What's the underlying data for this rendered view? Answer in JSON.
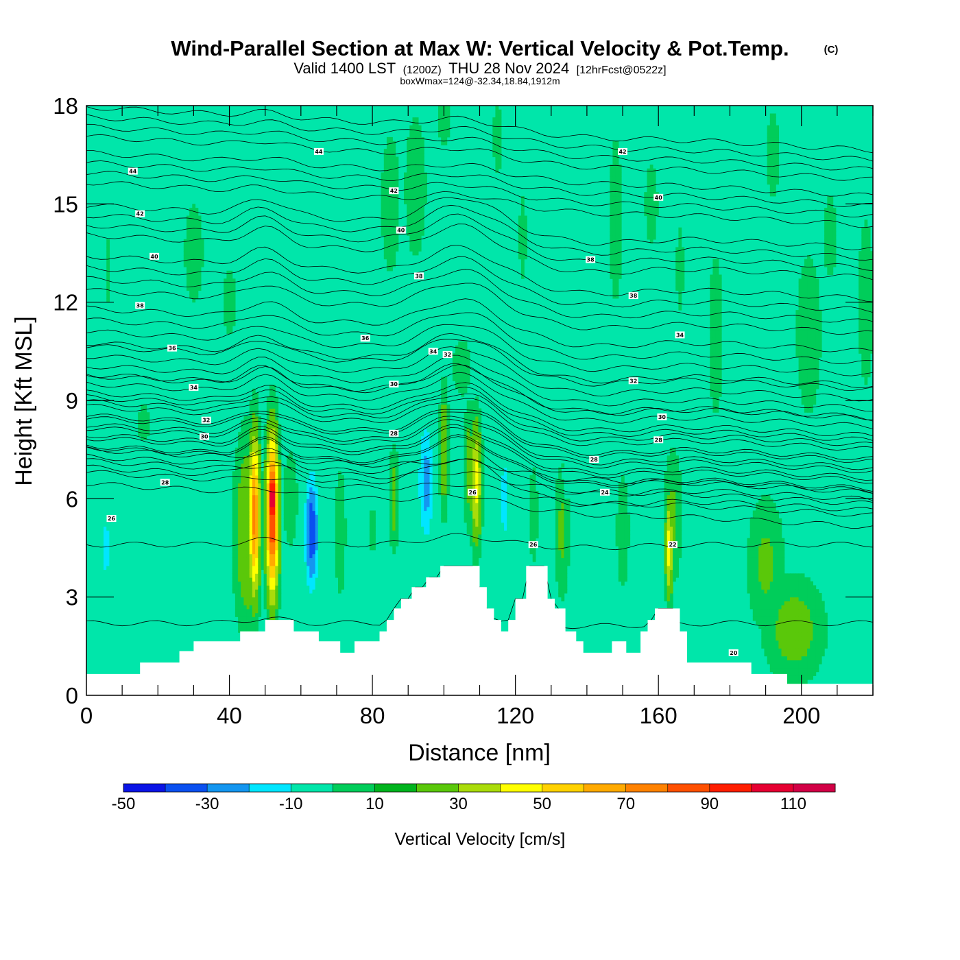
{
  "title": {
    "main": "Wind-Parallel Section at Max W: Vertical Velocity & Pot.Temp.",
    "copyright": "(C)",
    "valid_a": "Valid 1400 LST",
    "valid_b": "(1200Z)",
    "valid_c": "THU 28 Nov 2024",
    "valid_d": "[12hrFcst@0522z]",
    "box_info": "boxWmax=124@-32.34,18.84,1912m"
  },
  "chart_data": {
    "type": "heatmap",
    "xlabel": "Distance [nm]",
    "ylabel": "Height [Kft MSL]",
    "xlim": [
      0,
      220
    ],
    "ylim": [
      0,
      18
    ],
    "x_ticks": [
      "0",
      "40",
      "80",
      "120",
      "160",
      "200"
    ],
    "x_tick_values": [
      0,
      40,
      80,
      120,
      160,
      200
    ],
    "y_ticks": [
      "0",
      "3",
      "6",
      "9",
      "12",
      "15",
      "18"
    ],
    "y_tick_values": [
      0,
      3,
      6,
      9,
      12,
      15,
      18
    ],
    "colorbar": {
      "title": "Vertical Velocity [cm/s]",
      "labels": [
        "-50",
        "-30",
        "-10",
        "10",
        "30",
        "50",
        "70",
        "90",
        "110"
      ],
      "levels": [
        -60,
        -50,
        -40,
        -30,
        -20,
        -10,
        0,
        10,
        20,
        30,
        40,
        50,
        60,
        70,
        80,
        90,
        100,
        110,
        120
      ],
      "colors": [
        "#0a14e6",
        "#0a50f0",
        "#1496f0",
        "#00e6ff",
        "#00e6aa",
        "#00cd5a",
        "#00b41e",
        "#5ac80a",
        "#aadc0a",
        "#ffff00",
        "#ffd200",
        "#ffaa00",
        "#ff8200",
        "#ff5000",
        "#ff1e00",
        "#e60032",
        "#d20046"
      ]
    },
    "background_color": "#00e6aa",
    "terrain": [
      [
        0,
        0.65
      ],
      [
        15,
        0.65
      ],
      [
        15,
        1.0
      ],
      [
        26,
        1.0
      ],
      [
        26,
        1.35
      ],
      [
        30,
        1.35
      ],
      [
        30,
        1.65
      ],
      [
        43,
        1.65
      ],
      [
        43,
        1.95
      ],
      [
        50,
        1.95
      ],
      [
        50,
        2.3
      ],
      [
        58,
        2.3
      ],
      [
        58,
        1.95
      ],
      [
        65,
        1.95
      ],
      [
        65,
        1.65
      ],
      [
        71,
        1.65
      ],
      [
        71,
        1.3
      ],
      [
        75,
        1.3
      ],
      [
        75,
        1.65
      ],
      [
        82,
        1.65
      ],
      [
        82,
        1.95
      ],
      [
        84,
        1.95
      ],
      [
        84,
        2.3
      ],
      [
        86,
        2.3
      ],
      [
        86,
        2.65
      ],
      [
        88,
        2.65
      ],
      [
        88,
        2.95
      ],
      [
        91,
        2.95
      ],
      [
        91,
        3.3
      ],
      [
        95,
        3.3
      ],
      [
        95,
        3.6
      ],
      [
        99,
        3.6
      ],
      [
        99,
        3.95
      ],
      [
        110,
        3.95
      ],
      [
        110,
        3.3
      ],
      [
        112,
        3.3
      ],
      [
        112,
        2.65
      ],
      [
        114,
        2.65
      ],
      [
        114,
        2.3
      ],
      [
        116,
        2.3
      ],
      [
        116,
        1.95
      ],
      [
        118,
        1.95
      ],
      [
        118,
        2.3
      ],
      [
        120,
        2.3
      ],
      [
        120,
        2.95
      ],
      [
        123,
        2.95
      ],
      [
        123,
        3.95
      ],
      [
        129,
        3.95
      ],
      [
        129,
        2.95
      ],
      [
        131,
        2.95
      ],
      [
        131,
        2.65
      ],
      [
        134,
        2.65
      ],
      [
        134,
        1.95
      ],
      [
        137,
        1.95
      ],
      [
        137,
        1.65
      ],
      [
        139,
        1.65
      ],
      [
        139,
        1.3
      ],
      [
        147,
        1.3
      ],
      [
        147,
        1.65
      ],
      [
        151,
        1.65
      ],
      [
        151,
        1.3
      ],
      [
        155,
        1.3
      ],
      [
        155,
        1.95
      ],
      [
        157,
        1.95
      ],
      [
        157,
        2.3
      ],
      [
        159,
        2.3
      ],
      [
        159,
        2.65
      ],
      [
        166,
        2.65
      ],
      [
        166,
        1.95
      ],
      [
        168,
        1.95
      ],
      [
        168,
        1.0
      ],
      [
        186,
        1.0
      ],
      [
        186,
        0.65
      ],
      [
        196,
        0.65
      ],
      [
        196,
        0.35
      ],
      [
        220,
        0.35
      ]
    ],
    "velocity_features": [
      {
        "x": 6,
        "y": 4.3,
        "w": 0,
        "sx": 3.0,
        "sy": 1.8
      },
      {
        "x": 5.5,
        "y": 4.5,
        "w": -25,
        "sx": 1.5,
        "sy": 1.5
      },
      {
        "x": 18,
        "y": 4.0,
        "w": -15,
        "sx": 3.0,
        "sy": 2.0
      },
      {
        "x": 30,
        "y": 5.5,
        "w": -12,
        "sx": 2.5,
        "sy": 1.0
      },
      {
        "x": 30,
        "y": 13.5,
        "w": 8,
        "sx": 3.0,
        "sy": 1.8
      },
      {
        "x": 40,
        "y": 12.0,
        "w": 6,
        "sx": 3.0,
        "sy": 1.5
      },
      {
        "x": 6,
        "y": 13.0,
        "w": 5,
        "sx": 1.5,
        "sy": 2.0
      },
      {
        "x": 16,
        "y": 8.3,
        "w": 6,
        "sx": 2.5,
        "sy": 0.9
      },
      {
        "x": 45,
        "y": 5.0,
        "w": 20,
        "sx": 3.5,
        "sy": 2.8
      },
      {
        "x": 47,
        "y": 5.5,
        "w": 65,
        "sx": 1.4,
        "sy": 2.3
      },
      {
        "x": 52,
        "y": 5.5,
        "w": 85,
        "sx": 1.6,
        "sy": 2.3
      },
      {
        "x": 52,
        "y": 6.0,
        "w": 120,
        "sx": 0.8,
        "sy": 1.2
      },
      {
        "x": 57,
        "y": 6.0,
        "w": 10,
        "sx": 2.0,
        "sy": 1.5
      },
      {
        "x": 63,
        "y": 5.0,
        "w": -48,
        "sx": 2.2,
        "sy": 2.0
      },
      {
        "x": 65,
        "y": 5.5,
        "w": -20,
        "sx": 4.0,
        "sy": 2.5
      },
      {
        "x": 71,
        "y": 5.0,
        "w": 10,
        "sx": 1.5,
        "sy": 2.0
      },
      {
        "x": 76,
        "y": 6.0,
        "w": -15,
        "sx": 1.2,
        "sy": 1.5
      },
      {
        "x": 80,
        "y": 5.0,
        "w": 5,
        "sx": 1.5,
        "sy": 1.5
      },
      {
        "x": 86,
        "y": 6.0,
        "w": 15,
        "sx": 1.2,
        "sy": 1.5
      },
      {
        "x": 90,
        "y": 5.5,
        "w": -15,
        "sx": 2.0,
        "sy": 1.5
      },
      {
        "x": 95,
        "y": 6.5,
        "w": -35,
        "sx": 2.5,
        "sy": 2.2
      },
      {
        "x": 100,
        "y": 7.5,
        "w": 20,
        "sx": 1.2,
        "sy": 1.8
      },
      {
        "x": 104,
        "y": 6.5,
        "w": -12,
        "sx": 1.5,
        "sy": 2.0
      },
      {
        "x": 107,
        "y": 7.0,
        "w": 15,
        "sx": 1.5,
        "sy": 1.8
      },
      {
        "x": 109,
        "y": 6.5,
        "w": 35,
        "sx": 1.4,
        "sy": 1.8
      },
      {
        "x": 113,
        "y": 6.0,
        "w": -10,
        "sx": 2.0,
        "sy": 1.8
      },
      {
        "x": 117,
        "y": 6.0,
        "w": -25,
        "sx": 2.0,
        "sy": 2.0
      },
      {
        "x": 121,
        "y": 6.0,
        "w": -10,
        "sx": 2.0,
        "sy": 1.5
      },
      {
        "x": 125,
        "y": 5.5,
        "w": 10,
        "sx": 1.2,
        "sy": 1.5
      },
      {
        "x": 133,
        "y": 5.0,
        "w": 12,
        "sx": 2.0,
        "sy": 2.0
      },
      {
        "x": 144,
        "y": 5.0,
        "w": -12,
        "sx": 3.5,
        "sy": 2.0
      },
      {
        "x": 150,
        "y": 5.0,
        "w": 8,
        "sx": 2.0,
        "sy": 2.0
      },
      {
        "x": 157,
        "y": 5.0,
        "w": -20,
        "sx": 1.8,
        "sy": 1.5
      },
      {
        "x": 163,
        "y": 4.5,
        "w": 35,
        "sx": 1.0,
        "sy": 1.5
      },
      {
        "x": 164,
        "y": 5.5,
        "w": 12,
        "sx": 2.5,
        "sy": 2.0
      },
      {
        "x": 190,
        "y": 4.0,
        "w": 12,
        "sx": 5.0,
        "sy": 2.0
      },
      {
        "x": 198,
        "y": 2.0,
        "w": 15,
        "sx": 8.0,
        "sy": 1.5
      },
      {
        "x": 85,
        "y": 15.0,
        "w": 8,
        "sx": 3.0,
        "sy": 2.5
      },
      {
        "x": 92,
        "y": 15.5,
        "w": 10,
        "sx": 3.0,
        "sy": 2.2
      },
      {
        "x": 105,
        "y": 10.0,
        "w": 8,
        "sx": 3.0,
        "sy": 1.0
      },
      {
        "x": 100,
        "y": 17.5,
        "w": 8,
        "sx": 2.0,
        "sy": 0.8
      },
      {
        "x": 115,
        "y": 17.0,
        "w": 8,
        "sx": 1.5,
        "sy": 1.2
      },
      {
        "x": 122,
        "y": 14.0,
        "w": 6,
        "sx": 1.5,
        "sy": 2.0
      },
      {
        "x": 148,
        "y": 14.5,
        "w": 8,
        "sx": 2.0,
        "sy": 3.0
      },
      {
        "x": 158,
        "y": 15.0,
        "w": 8,
        "sx": 2.0,
        "sy": 1.5
      },
      {
        "x": 166,
        "y": 13.0,
        "w": 6,
        "sx": 1.5,
        "sy": 2.0
      },
      {
        "x": 176,
        "y": 11.0,
        "w": 10,
        "sx": 2.0,
        "sy": 2.5
      },
      {
        "x": 202,
        "y": 11.0,
        "w": 10,
        "sx": 3.5,
        "sy": 2.5
      },
      {
        "x": 208,
        "y": 14.0,
        "w": 8,
        "sx": 2.0,
        "sy": 1.5
      },
      {
        "x": 218,
        "y": 12.0,
        "w": 8,
        "sx": 2.5,
        "sy": 3.0
      },
      {
        "x": 192,
        "y": 16.5,
        "w": 8,
        "sx": 2.0,
        "sy": 1.5
      },
      {
        "x": 74,
        "y": 11.0,
        "w": -12,
        "sx": 0.6,
        "sy": 0.6
      },
      {
        "x": 124,
        "y": 12.0,
        "w": -12,
        "sx": 0.5,
        "sy": 0.8
      },
      {
        "x": 134,
        "y": 6.5,
        "w": -12,
        "sx": 1.0,
        "sy": 0.8
      }
    ],
    "theta_levels": [
      {
        "value": 20,
        "height": 2.2,
        "dh": 0
      },
      {
        "value": 22,
        "height": 4.6,
        "dh": 0
      },
      {
        "value": 24,
        "height": 5.8,
        "dh": 0.35
      },
      {
        "value": 26,
        "height": 6.3,
        "dh": 0.33
      },
      {
        "value": 28,
        "height": 6.9,
        "dh": 0.3
      },
      {
        "value": 30,
        "height": 7.6,
        "dh": 0.28
      },
      {
        "value": 32,
        "height": 8.3,
        "dh": 0.28
      },
      {
        "value": 34,
        "height": 9.1,
        "dh": 0.3
      },
      {
        "value": 36,
        "height": 10.1,
        "dh": 0.35
      },
      {
        "value": 38,
        "height": 11.7,
        "dh": 0.35
      },
      {
        "value": 40,
        "height": 13.4,
        "dh": 0.3
      },
      {
        "value": 42,
        "height": 15.0,
        "dh": 0.3
      },
      {
        "value": 44,
        "height": 16.4,
        "dh": 0.3
      }
    ],
    "contour_labels": [
      {
        "x": 7,
        "y": 5.4,
        "text": "26"
      },
      {
        "x": 22,
        "y": 6.5,
        "text": "28"
      },
      {
        "x": 33,
        "y": 7.9,
        "text": "30"
      },
      {
        "x": 33.5,
        "y": 8.4,
        "text": "32"
      },
      {
        "x": 30,
        "y": 9.4,
        "text": "34"
      },
      {
        "x": 24,
        "y": 10.6,
        "text": "36"
      },
      {
        "x": 15,
        "y": 11.9,
        "text": "38"
      },
      {
        "x": 19,
        "y": 13.4,
        "text": "40"
      },
      {
        "x": 15,
        "y": 14.7,
        "text": "42"
      },
      {
        "x": 13,
        "y": 16.0,
        "text": "44"
      },
      {
        "x": 65,
        "y": 16.6,
        "text": "44"
      },
      {
        "x": 86,
        "y": 15.4,
        "text": "42"
      },
      {
        "x": 88,
        "y": 14.2,
        "text": "40"
      },
      {
        "x": 93,
        "y": 12.8,
        "text": "38"
      },
      {
        "x": 78,
        "y": 10.9,
        "text": "36"
      },
      {
        "x": 97,
        "y": 10.5,
        "text": "34"
      },
      {
        "x": 101,
        "y": 10.4,
        "text": "32"
      },
      {
        "x": 86,
        "y": 9.5,
        "text": "30"
      },
      {
        "x": 86,
        "y": 8.0,
        "text": "28"
      },
      {
        "x": 108,
        "y": 6.2,
        "text": "26"
      },
      {
        "x": 125,
        "y": 4.6,
        "text": "26"
      },
      {
        "x": 150,
        "y": 16.6,
        "text": "42"
      },
      {
        "x": 160,
        "y": 15.2,
        "text": "40"
      },
      {
        "x": 141,
        "y": 13.3,
        "text": "38"
      },
      {
        "x": 153,
        "y": 12.2,
        "text": "38"
      },
      {
        "x": 166,
        "y": 11.0,
        "text": "34"
      },
      {
        "x": 153,
        "y": 9.6,
        "text": "32"
      },
      {
        "x": 161,
        "y": 8.5,
        "text": "30"
      },
      {
        "x": 160,
        "y": 7.8,
        "text": "28"
      },
      {
        "x": 142,
        "y": 7.2,
        "text": "28"
      },
      {
        "x": 145,
        "y": 6.2,
        "text": "24"
      },
      {
        "x": 164,
        "y": 4.6,
        "text": "22"
      },
      {
        "x": 181,
        "y": 1.3,
        "text": "20"
      }
    ]
  }
}
